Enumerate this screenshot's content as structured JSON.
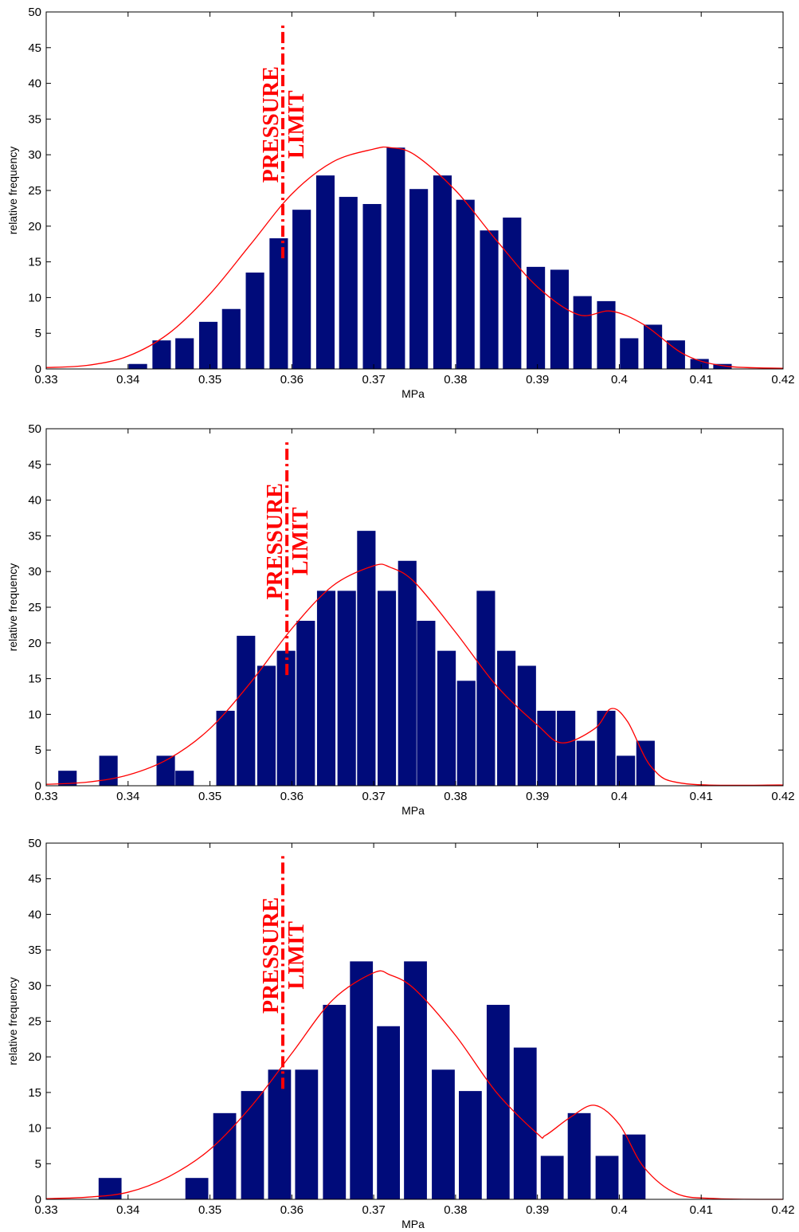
{
  "colors": {
    "bar": "#000b7a",
    "curve": "#ff0000",
    "limit": "#ff0000",
    "axis": "#000000"
  },
  "chart_data": [
    {
      "type": "bar",
      "xlabel": "MPa",
      "ylabel": "relative frequency",
      "xlim": [
        0.33,
        0.42
      ],
      "ylim": [
        0,
        50
      ],
      "xticks": [
        "0.33",
        "0.34",
        "0.35",
        "0.36",
        "0.37",
        "0.38",
        "0.39",
        "0.4",
        "0.41",
        "0.42"
      ],
      "yticks": [
        "0",
        "5",
        "10",
        "15",
        "20",
        "25",
        "30",
        "35",
        "40",
        "45",
        "50"
      ],
      "bar_width": 0.00225,
      "bars": {
        "x": [
          0.3412,
          0.3441,
          0.3469,
          0.3498,
          0.3526,
          0.3555,
          0.3584,
          0.3612,
          0.3641,
          0.3669,
          0.3698,
          0.3727,
          0.3755,
          0.3784,
          0.3812,
          0.3841,
          0.3869,
          0.3898,
          0.3927,
          0.3955,
          0.3984,
          0.4012,
          0.4041,
          0.4069,
          0.4098,
          0.4126
        ],
        "values": [
          0.7,
          4.0,
          4.3,
          6.6,
          8.4,
          13.5,
          18.3,
          22.3,
          27.1,
          24.1,
          23.1,
          31.0,
          25.2,
          27.1,
          23.7,
          19.4,
          21.2,
          14.3,
          13.9,
          10.2,
          9.5,
          4.3,
          6.2,
          4.0,
          1.4,
          0.7
        ]
      },
      "curve": {
        "x": [
          0.33,
          0.335,
          0.34,
          0.345,
          0.35,
          0.355,
          0.36,
          0.365,
          0.37,
          0.372,
          0.375,
          0.38,
          0.385,
          0.39,
          0.395,
          0.399,
          0.403,
          0.408,
          0.413,
          0.42
        ],
        "y": [
          0.2,
          0.5,
          1.8,
          5.0,
          10.5,
          17.5,
          24.5,
          29.0,
          30.8,
          31.0,
          30.0,
          25.0,
          18.0,
          11.5,
          7.6,
          8.1,
          6.2,
          2.0,
          0.4,
          0.1
        ]
      },
      "limit": {
        "x": 0.3589,
        "y_from": 15.5,
        "y_to": 48.5,
        "label_1": "PRESSURE",
        "label_2": "LIMIT"
      }
    },
    {
      "type": "bar",
      "xlabel": "MPa",
      "ylabel": "relative frequency",
      "xlim": [
        0.33,
        0.42
      ],
      "ylim": [
        0,
        50
      ],
      "xticks": [
        "0.33",
        "0.34",
        "0.35",
        "0.36",
        "0.37",
        "0.38",
        "0.39",
        "0.4",
        "0.41",
        "0.42"
      ],
      "yticks": [
        "0",
        "5",
        "10",
        "15",
        "20",
        "25",
        "30",
        "35",
        "40",
        "45",
        "50"
      ],
      "bar_width": 0.00225,
      "bars": {
        "x": [
          0.3326,
          0.3376,
          0.3446,
          0.3469,
          0.3519,
          0.3544,
          0.3569,
          0.3593,
          0.3617,
          0.3642,
          0.3667,
          0.3691,
          0.3716,
          0.3741,
          0.3764,
          0.3789,
          0.3813,
          0.3837,
          0.3862,
          0.3887,
          0.3911,
          0.3935,
          0.3959,
          0.3984,
          0.4008,
          0.4032
        ],
        "values": [
          2.1,
          4.2,
          4.2,
          2.1,
          10.5,
          21.0,
          16.8,
          18.9,
          23.1,
          27.3,
          27.3,
          35.7,
          27.3,
          31.5,
          23.1,
          18.9,
          14.7,
          27.3,
          18.9,
          16.8,
          10.5,
          10.5,
          6.3,
          10.5,
          4.2,
          6.3
        ]
      },
      "curve": {
        "x": [
          0.33,
          0.335,
          0.34,
          0.345,
          0.35,
          0.355,
          0.36,
          0.365,
          0.37,
          0.372,
          0.375,
          0.38,
          0.385,
          0.39,
          0.393,
          0.397,
          0.399,
          0.401,
          0.404,
          0.408,
          0.42
        ],
        "y": [
          0.2,
          0.5,
          1.5,
          3.8,
          8.0,
          14.5,
          22.0,
          28.0,
          30.8,
          30.6,
          28.5,
          21.5,
          14.0,
          8.5,
          6.0,
          8.0,
          10.8,
          9.0,
          2.5,
          0.3,
          0.1
        ]
      },
      "limit": {
        "x": 0.3594,
        "y_from": 15.5,
        "y_to": 48.5,
        "label_1": "PRESSURE",
        "label_2": "LIMIT"
      }
    },
    {
      "type": "bar",
      "xlabel": "MPa",
      "ylabel": "relative frequency",
      "xlim": [
        0.33,
        0.42
      ],
      "ylim": [
        0,
        50
      ],
      "xticks": [
        "0.33",
        "0.34",
        "0.35",
        "0.36",
        "0.37",
        "0.38",
        "0.39",
        "0.4",
        "0.41",
        "0.42"
      ],
      "yticks": [
        "0",
        "5",
        "10",
        "15",
        "20",
        "25",
        "30",
        "35",
        "40",
        "45",
        "50"
      ],
      "bar_width": 0.0028,
      "bars": {
        "x": [
          0.3378,
          0.3484,
          0.3518,
          0.3552,
          0.3585,
          0.3618,
          0.3652,
          0.3685,
          0.3718,
          0.3751,
          0.3785,
          0.3818,
          0.3852,
          0.3885,
          0.3918,
          0.3951,
          0.3985,
          0.4018
        ],
        "values": [
          3.0,
          3.0,
          12.1,
          15.2,
          18.2,
          18.2,
          27.3,
          33.4,
          24.3,
          33.4,
          18.2,
          15.2,
          27.3,
          21.3,
          6.1,
          12.1,
          6.1,
          9.1
        ]
      },
      "curve": {
        "x": [
          0.33,
          0.335,
          0.34,
          0.345,
          0.35,
          0.355,
          0.36,
          0.365,
          0.37,
          0.372,
          0.375,
          0.38,
          0.385,
          0.39,
          0.391,
          0.394,
          0.397,
          0.4,
          0.403,
          0.407,
          0.412,
          0.42
        ],
        "y": [
          0.1,
          0.3,
          1.0,
          3.2,
          7.0,
          13.0,
          20.5,
          28.0,
          31.8,
          31.5,
          29.5,
          23.0,
          15.0,
          9.2,
          9.0,
          11.5,
          13.2,
          10.5,
          4.5,
          0.8,
          0.1,
          0.0
        ]
      },
      "limit": {
        "x": 0.3589,
        "y_from": 15.5,
        "y_to": 48.5,
        "label_1": "PRESSURE",
        "label_2": "LIMIT"
      }
    }
  ]
}
